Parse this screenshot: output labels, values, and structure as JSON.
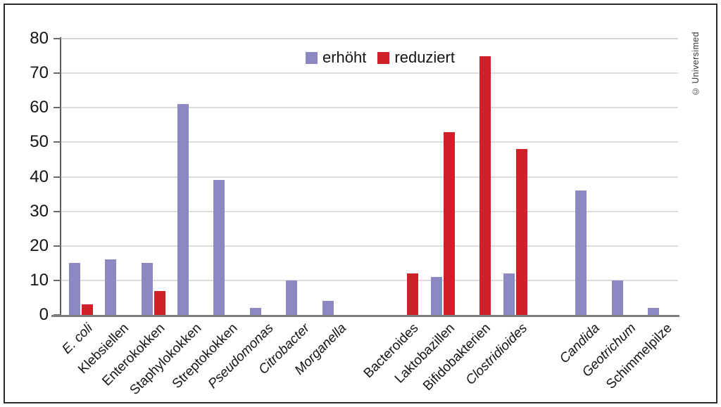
{
  "frame": {
    "copyright": "© Universimed"
  },
  "legend": {
    "items": [
      {
        "label": "erhöht",
        "color": "#8C89C2"
      },
      {
        "label": "reduziert",
        "color": "#D0202A"
      }
    ]
  },
  "axis_colors": {
    "grid": "#dcdcdc",
    "axis": "#7d7d7d",
    "text": "#141414"
  },
  "chart_data": {
    "type": "bar",
    "title": "",
    "xlabel": "",
    "ylabel": "",
    "ylim": [
      0,
      80
    ],
    "ytick_step": 10,
    "grid": true,
    "legend_position": "top-center",
    "categories": [
      "E. coli",
      "Klebsiellen",
      "Enterokokken",
      "Staphylokokken",
      "Streptokokken",
      "Pseudomonas",
      "Citrobacter",
      "Morganella",
      "Bacteroides",
      "Laktobazillen",
      "Bifidobakterien",
      "Clostridioides",
      "Candida",
      "Geotrichum",
      "Schimmelpilze"
    ],
    "categories_italic": [
      true,
      false,
      false,
      false,
      false,
      true,
      true,
      true,
      false,
      false,
      false,
      true,
      true,
      true,
      false
    ],
    "group_gap_after": [
      7,
      11
    ],
    "series": [
      {
        "name": "erhöht",
        "color": "#8C89C2",
        "values": [
          15,
          16,
          15,
          61,
          39,
          2,
          10,
          4,
          null,
          11,
          null,
          12,
          36,
          10,
          2
        ]
      },
      {
        "name": "reduziert",
        "color": "#D0202A",
        "values": [
          3,
          null,
          7,
          null,
          null,
          null,
          null,
          null,
          12,
          53,
          75,
          48,
          null,
          null,
          null
        ]
      }
    ]
  }
}
